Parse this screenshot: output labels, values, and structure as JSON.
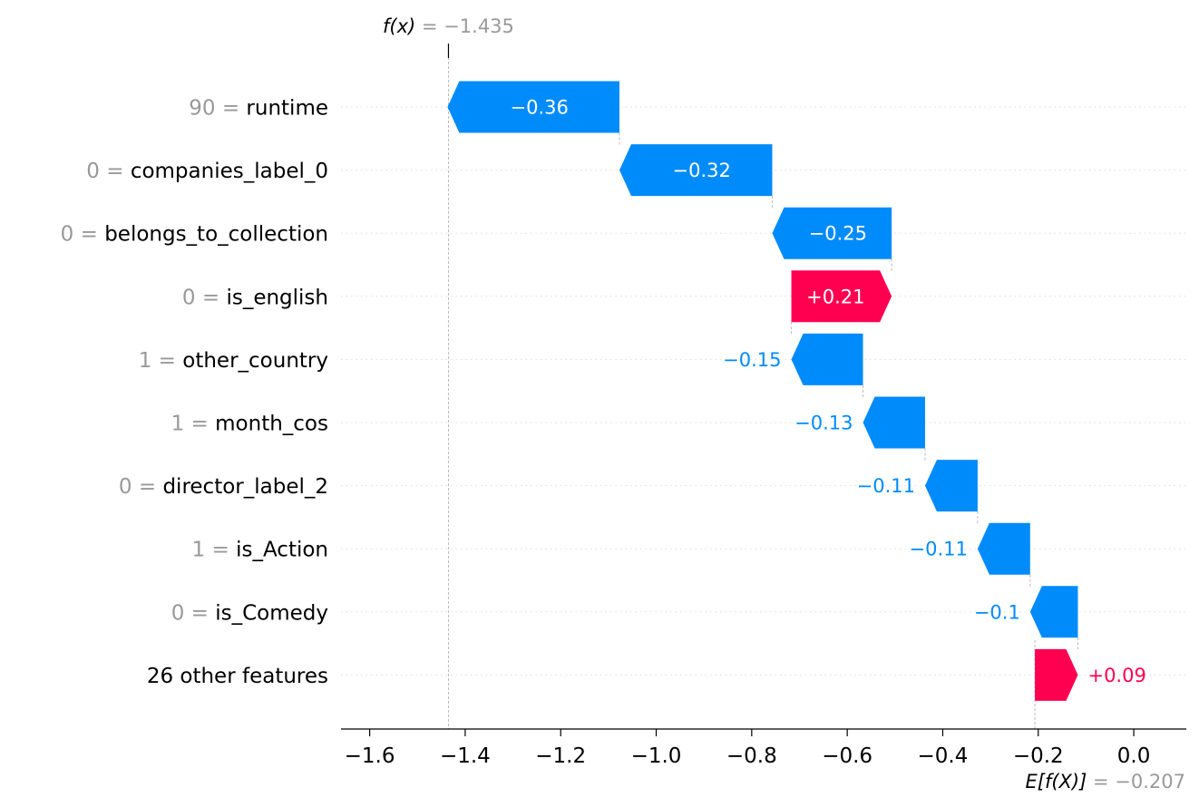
{
  "chart_data": {
    "type": "waterfall",
    "features": [
      {
        "value": "90",
        "name": "runtime",
        "contribution": -0.36,
        "label": "−0.36"
      },
      {
        "value": "0",
        "name": "companies_label_0",
        "contribution": -0.32,
        "label": "−0.32"
      },
      {
        "value": "0",
        "name": "belongs_to_collection",
        "contribution": -0.25,
        "label": "−0.25"
      },
      {
        "value": "0",
        "name": "is_english",
        "contribution": 0.21,
        "label": "+0.21"
      },
      {
        "value": "1",
        "name": "other_country",
        "contribution": -0.15,
        "label": "−0.15"
      },
      {
        "value": "1",
        "name": "month_cos",
        "contribution": -0.13,
        "label": "−0.13"
      },
      {
        "value": "0",
        "name": "director_label_2",
        "contribution": -0.11,
        "label": "−0.11"
      },
      {
        "value": "1",
        "name": "is_Action",
        "contribution": -0.11,
        "label": "−0.11"
      },
      {
        "value": "0",
        "name": "is_Comedy",
        "contribution": -0.1,
        "label": "−0.1"
      },
      {
        "value": "",
        "name": "26 other features",
        "contribution": 0.09,
        "label": "+0.09"
      }
    ],
    "base_value": -0.207,
    "output_value": -1.435,
    "fx_label": {
      "var": "f(x)",
      "val": " = −1.435"
    },
    "efx_label": {
      "var": "E[f(X)]",
      "val": " = −0.207"
    },
    "xlim": [
      -1.66,
      0.11
    ],
    "xticks": [
      -1.6,
      -1.4,
      -1.2,
      -1.0,
      -0.8,
      -0.6,
      -0.4,
      -0.2,
      0.0
    ],
    "xtick_labels": [
      "−1.6",
      "−1.4",
      "−1.2",
      "−1.0",
      "−0.8",
      "−0.6",
      "−0.4",
      "−0.2",
      "0.0"
    ],
    "colors": {
      "positive": "#ff0051",
      "negative": "#008bfb",
      "muted": "#999999"
    }
  }
}
